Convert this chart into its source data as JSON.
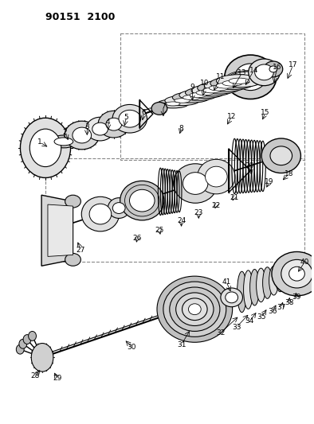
{
  "title": "90151 2100",
  "title_fontsize": 10,
  "title_fontweight": "bold",
  "background_color": "#ffffff",
  "figsize": [
    3.94,
    5.33
  ],
  "dpi": 100,
  "diagram_bg": "#f5f5f5"
}
